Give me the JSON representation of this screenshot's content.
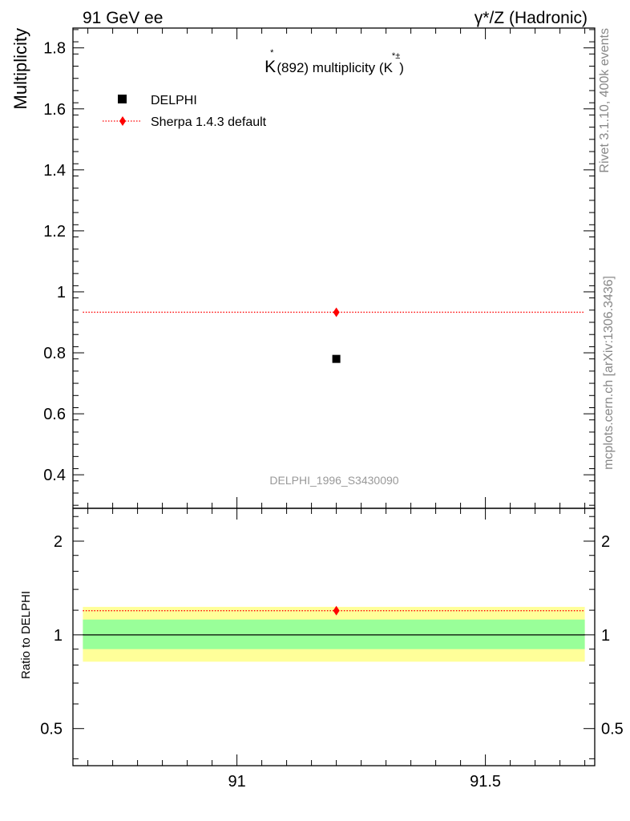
{
  "header": {
    "left": "91 GeV ee",
    "right": "γ*/Z (Hadronic)"
  },
  "side_labels": {
    "rivet": "Rivet 3.1.10,  400k events",
    "mcplots": "mcplots.cern.ch [arXiv:1306.3436]"
  },
  "chart_data": [
    {
      "type": "scatter",
      "title_parts": {
        "k": "K",
        "star": "*",
        "main": "(892) multiplicity (K",
        "sup": "*±",
        "close": ")"
      },
      "ylabel": "Multiplicity",
      "watermark": "DELPHI_1996_S3430090",
      "xlim": [
        90.67,
        91.72
      ],
      "ylim": [
        0.29,
        1.865
      ],
      "yticks": [
        0.4,
        0.6,
        0.8,
        1,
        1.2,
        1.4,
        1.6,
        1.8
      ],
      "ytick_labels": [
        "0.4",
        "0.6",
        "0.8",
        "1",
        "1.2",
        "1.4",
        "1.6",
        "1.8"
      ],
      "legend_position": "top-left",
      "series": [
        {
          "name": "DELPHI",
          "color": "#000000",
          "marker": "square",
          "x": [
            91.2
          ],
          "y": [
            0.78
          ]
        },
        {
          "name": "Sherpa 1.4.3 default",
          "color": "#ff0000",
          "marker": "diamond",
          "line": "dotted",
          "x": [
            91.2
          ],
          "y": [
            0.933
          ],
          "x_range": [
            90.69,
            91.7
          ]
        }
      ]
    },
    {
      "type": "line",
      "ylabel": "Ratio to DELPHI",
      "xlim": [
        90.67,
        91.72
      ],
      "ylim": [
        0.38,
        2.55
      ],
      "log_scale": true,
      "xticks": [
        91,
        91.5
      ],
      "xtick_labels": [
        "91",
        "91.5"
      ],
      "yticks": [
        0.5,
        1,
        2
      ],
      "ytick_labels": [
        "0.5",
        "1",
        "2"
      ],
      "bands": [
        {
          "lower": 0.82,
          "upper": 1.23,
          "color": "#ffff99"
        },
        {
          "lower": 0.9,
          "upper": 1.12,
          "color": "#99ff99"
        }
      ],
      "reference_line": 1,
      "series": [
        {
          "name": "Sherpa 1.4.3 default",
          "color": "#ff0000",
          "x": [
            91.2
          ],
          "y": [
            1.196
          ],
          "x_range": [
            90.69,
            91.7
          ]
        }
      ]
    }
  ]
}
